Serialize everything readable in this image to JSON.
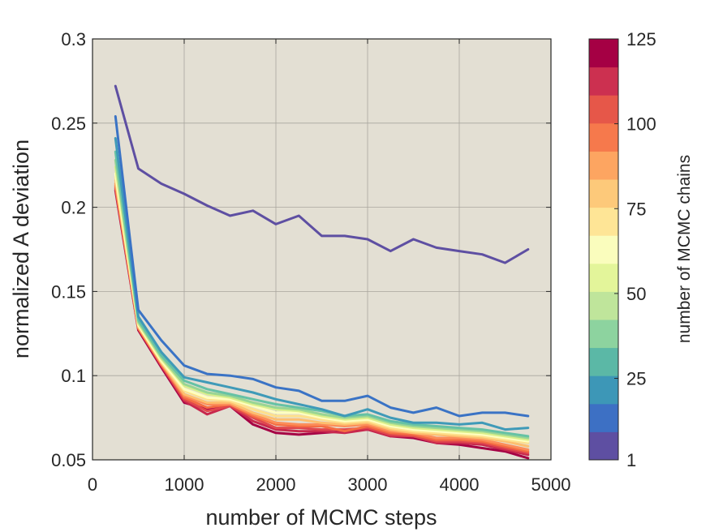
{
  "chart_data": {
    "type": "line",
    "xlabel": "number of MCMC steps",
    "ylabel": "normalized A deviation",
    "xlim": [
      0,
      5000
    ],
    "ylim": [
      0.05,
      0.3
    ],
    "xticks": [
      0,
      1000,
      2000,
      3000,
      4000,
      5000
    ],
    "yticks": [
      0.05,
      0.1,
      0.15,
      0.2,
      0.25,
      0.3
    ],
    "xtick_labels": [
      "0",
      "1000",
      "2000",
      "3000",
      "4000",
      "5000"
    ],
    "ytick_labels": [
      "0.05",
      "0.1",
      "0.15",
      "0.2",
      "0.25",
      "0.3"
    ],
    "grid": true,
    "background": "#e3dfd3",
    "x": [
      250,
      500,
      750,
      1000,
      1250,
      1500,
      1750,
      2000,
      2250,
      2500,
      2750,
      3000,
      3250,
      3500,
      3750,
      4000,
      4250,
      4500,
      4750
    ],
    "series": [
      {
        "chains": 1,
        "color": "#5e4fa2",
        "values": [
          0.272,
          0.223,
          0.214,
          0.208,
          0.201,
          0.195,
          0.198,
          0.19,
          0.195,
          0.183,
          0.183,
          0.181,
          0.174,
          0.181,
          0.176,
          0.174,
          0.172,
          0.167,
          0.175
        ]
      },
      {
        "chains": 10,
        "color": "#3a73c5",
        "values": [
          0.254,
          0.139,
          0.121,
          0.106,
          0.101,
          0.1,
          0.098,
          0.093,
          0.091,
          0.085,
          0.085,
          0.088,
          0.081,
          0.078,
          0.081,
          0.076,
          0.078,
          0.078,
          0.076
        ]
      },
      {
        "chains": 20,
        "color": "#3f9ab8",
        "values": [
          0.241,
          0.135,
          0.114,
          0.099,
          0.096,
          0.093,
          0.09,
          0.086,
          0.083,
          0.08,
          0.076,
          0.08,
          0.075,
          0.072,
          0.072,
          0.071,
          0.072,
          0.068,
          0.069
        ]
      },
      {
        "chains": 30,
        "color": "#66c2a5",
        "values": [
          0.233,
          0.133,
          0.112,
          0.097,
          0.092,
          0.089,
          0.086,
          0.083,
          0.081,
          0.079,
          0.076,
          0.077,
          0.073,
          0.071,
          0.07,
          0.069,
          0.068,
          0.066,
          0.064
        ]
      },
      {
        "chains": 40,
        "color": "#99d594",
        "values": [
          0.228,
          0.132,
          0.111,
          0.095,
          0.09,
          0.088,
          0.084,
          0.081,
          0.08,
          0.077,
          0.075,
          0.076,
          0.072,
          0.07,
          0.069,
          0.068,
          0.067,
          0.065,
          0.063
        ]
      },
      {
        "chains": 50,
        "color": "#d9ef8b",
        "values": [
          0.224,
          0.131,
          0.11,
          0.094,
          0.089,
          0.087,
          0.083,
          0.08,
          0.079,
          0.076,
          0.074,
          0.075,
          0.071,
          0.069,
          0.068,
          0.067,
          0.066,
          0.064,
          0.062
        ]
      },
      {
        "chains": 60,
        "color": "#ffffbf",
        "values": [
          0.22,
          0.13,
          0.109,
          0.092,
          0.087,
          0.086,
          0.082,
          0.078,
          0.078,
          0.075,
          0.073,
          0.074,
          0.07,
          0.068,
          0.067,
          0.066,
          0.065,
          0.063,
          0.061
        ]
      },
      {
        "chains": 70,
        "color": "#fee08b",
        "values": [
          0.218,
          0.13,
          0.108,
          0.091,
          0.086,
          0.085,
          0.08,
          0.076,
          0.076,
          0.074,
          0.072,
          0.073,
          0.069,
          0.067,
          0.066,
          0.065,
          0.064,
          0.062,
          0.06
        ]
      },
      {
        "chains": 80,
        "color": "#fdbf6f",
        "values": [
          0.216,
          0.129,
          0.108,
          0.089,
          0.084,
          0.084,
          0.078,
          0.074,
          0.074,
          0.072,
          0.071,
          0.072,
          0.068,
          0.066,
          0.065,
          0.064,
          0.063,
          0.061,
          0.058
        ]
      },
      {
        "chains": 90,
        "color": "#fc8d59",
        "values": [
          0.214,
          0.129,
          0.107,
          0.088,
          0.083,
          0.083,
          0.077,
          0.072,
          0.071,
          0.071,
          0.07,
          0.071,
          0.067,
          0.066,
          0.063,
          0.063,
          0.062,
          0.059,
          0.056
        ]
      },
      {
        "chains": 100,
        "color": "#f46d43",
        "values": [
          0.213,
          0.128,
          0.107,
          0.087,
          0.081,
          0.083,
          0.076,
          0.071,
          0.07,
          0.07,
          0.067,
          0.07,
          0.066,
          0.065,
          0.062,
          0.062,
          0.061,
          0.058,
          0.055
        ]
      },
      {
        "chains": 110,
        "color": "#e0474d",
        "values": [
          0.212,
          0.128,
          0.106,
          0.086,
          0.079,
          0.082,
          0.075,
          0.069,
          0.069,
          0.068,
          0.068,
          0.069,
          0.065,
          0.064,
          0.061,
          0.061,
          0.06,
          0.057,
          0.054
        ]
      },
      {
        "chains": 120,
        "color": "#c8284d",
        "values": [
          0.211,
          0.128,
          0.106,
          0.085,
          0.077,
          0.082,
          0.073,
          0.068,
          0.067,
          0.067,
          0.066,
          0.068,
          0.064,
          0.064,
          0.06,
          0.06,
          0.059,
          0.056,
          0.053
        ]
      },
      {
        "chains": 125,
        "color": "#a50044",
        "values": [
          0.21,
          0.127,
          0.105,
          0.084,
          0.08,
          0.082,
          0.071,
          0.066,
          0.065,
          0.066,
          0.067,
          0.068,
          0.064,
          0.063,
          0.06,
          0.059,
          0.057,
          0.055,
          0.051
        ]
      }
    ],
    "colorbar": {
      "label": "number of MCMC chains",
      "ticks": [
        1,
        25,
        50,
        75,
        100,
        125
      ],
      "tick_labels": [
        "1",
        "25",
        "50",
        "75",
        "100",
        "125"
      ],
      "colors": [
        "#5e4fa2",
        "#3d70c4",
        "#3d97b7",
        "#5bb8a6",
        "#8dd39f",
        "#bfe59b",
        "#e3f59a",
        "#fafdbd",
        "#fee596",
        "#fdc97a",
        "#fda561",
        "#f6794c",
        "#e65749",
        "#cc3050",
        "#a50044"
      ]
    }
  }
}
